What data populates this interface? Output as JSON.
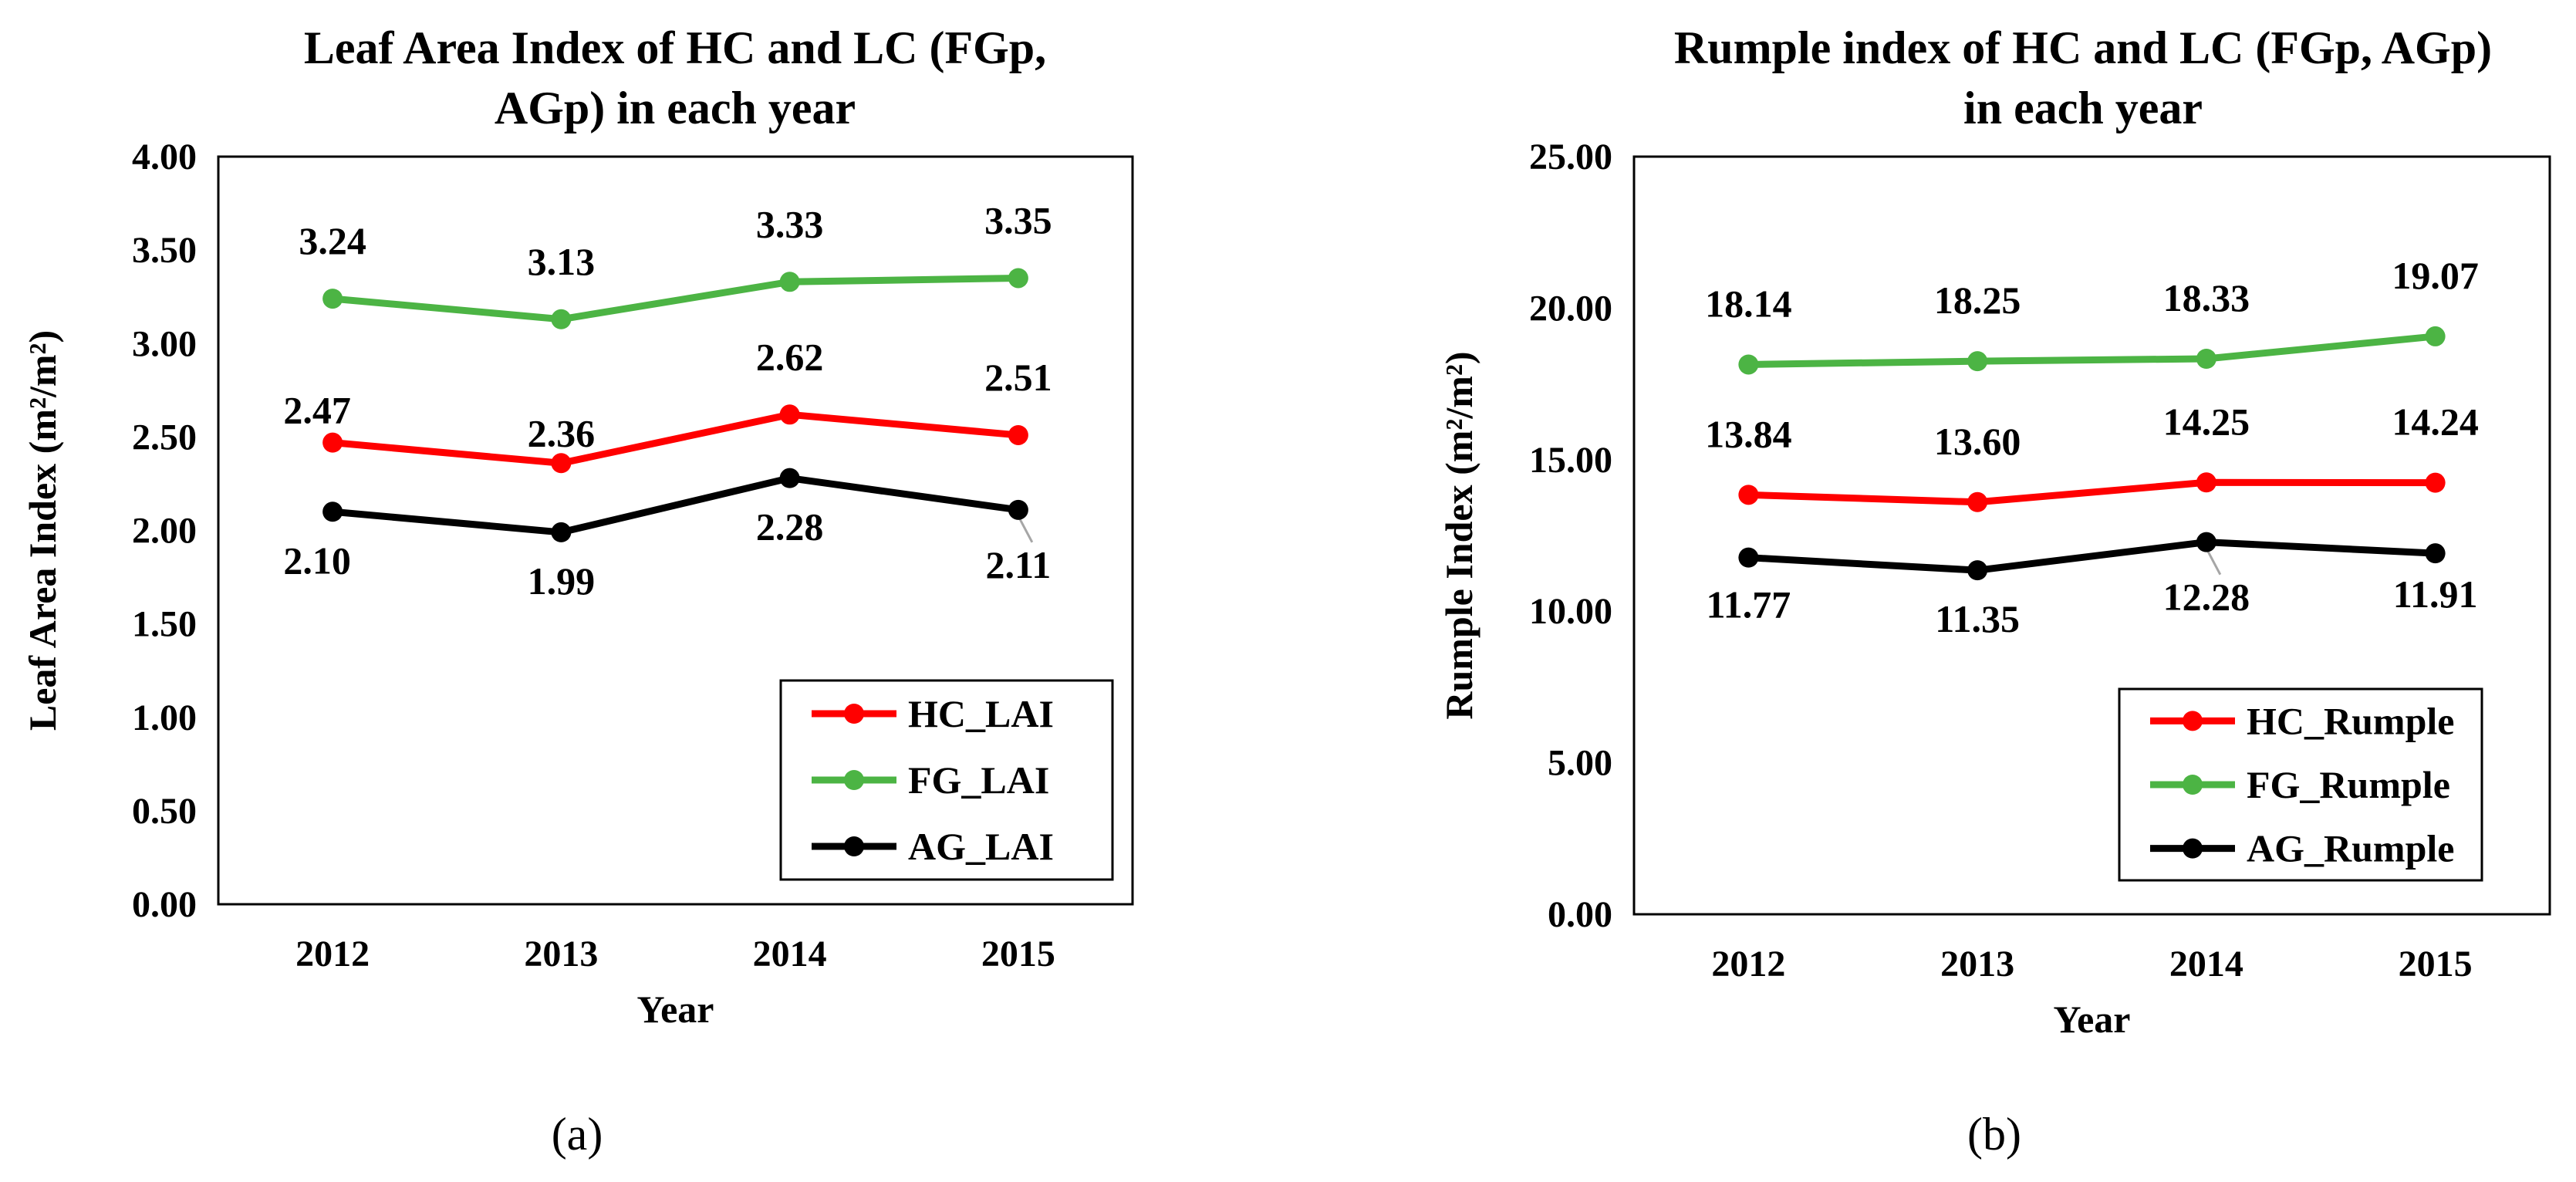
{
  "chart_data": [
    {
      "type": "line",
      "title_lines": [
        "Leaf Area Index of HC and LC (FGp,",
        "AGp) in each year"
      ],
      "xlabel": "Year",
      "ylabel": "Leaf Area Index (m²/m²)",
      "categories": [
        "2012",
        "2013",
        "2014",
        "2015"
      ],
      "ylim": [
        0,
        4
      ],
      "yticks": [
        "0.00",
        "0.50",
        "1.00",
        "1.50",
        "2.00",
        "2.50",
        "3.00",
        "3.50",
        "4.00"
      ],
      "grid": false,
      "legend_position": "bottom-right",
      "series": [
        {
          "name": "HC_LAI",
          "color": "#ff0000",
          "values": [
            2.47,
            2.36,
            2.62,
            2.51
          ],
          "labels": [
            "2.47",
            "2.36",
            "2.62",
            "2.51"
          ]
        },
        {
          "name": "FG_LAI",
          "color": "#4cb444",
          "values": [
            3.24,
            3.13,
            3.33,
            3.35
          ],
          "labels": [
            "3.24",
            "3.13",
            "3.33",
            "3.35"
          ]
        },
        {
          "name": "AG_LAI",
          "color": "#000000",
          "values": [
            2.1,
            1.99,
            2.28,
            2.11
          ],
          "labels": [
            "2.10",
            "1.99",
            "2.28",
            "2.11"
          ]
        }
      ],
      "caption": "(a)"
    },
    {
      "type": "line",
      "title_lines": [
        "Rumple index of HC and LC (FGp, AGp)",
        "in each year"
      ],
      "xlabel": "Year",
      "ylabel": "Rumple Index (m²/m²)",
      "categories": [
        "2012",
        "2013",
        "2014",
        "2015"
      ],
      "ylim": [
        0,
        25
      ],
      "yticks": [
        "0.00",
        "5.00",
        "10.00",
        "15.00",
        "20.00",
        "25.00"
      ],
      "grid": false,
      "legend_position": "bottom-right",
      "series": [
        {
          "name": "HC_Rumple",
          "color": "#ff0000",
          "values": [
            13.84,
            13.6,
            14.25,
            14.24
          ],
          "labels": [
            "13.84",
            "13.60",
            "14.25",
            "14.24"
          ]
        },
        {
          "name": "FG_Rumple",
          "color": "#4cb444",
          "values": [
            18.14,
            18.25,
            18.33,
            19.07
          ],
          "labels": [
            "18.14",
            "18.25",
            "18.33",
            "19.07"
          ]
        },
        {
          "name": "AG_Rumple",
          "color": "#000000",
          "values": [
            11.77,
            11.35,
            12.28,
            11.91
          ],
          "labels": [
            "11.77",
            "11.35",
            "12.28",
            "11.91"
          ]
        }
      ],
      "caption": "(b)"
    }
  ]
}
